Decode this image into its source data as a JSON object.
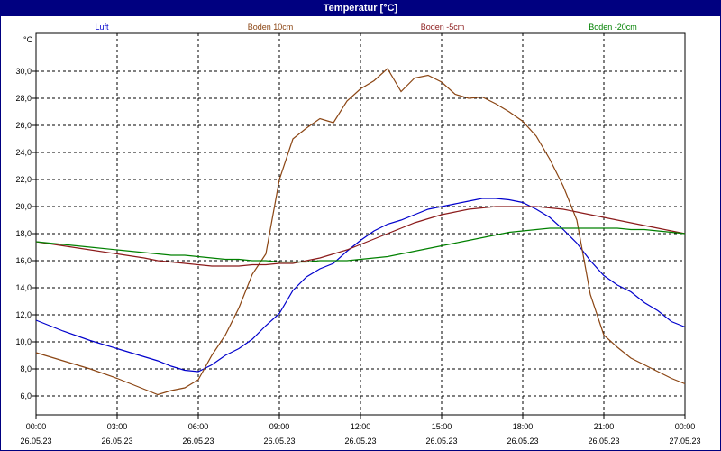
{
  "window": {
    "title": "Temperatur [°C]"
  },
  "colors": {
    "titlebar": "#000080",
    "grid": "#000000",
    "background": "#ffffff"
  },
  "chart_data": {
    "type": "line",
    "title": "Temperatur [°C]",
    "ylabel": "°C",
    "ylim": [
      4.6,
      32.8
    ],
    "xlim": [
      "26.05.23 00:00",
      "27.05.23 00:00"
    ],
    "grid": true,
    "legend_placement": "top",
    "y_ticks": [
      "6,0",
      "8,0",
      "10,0",
      "12,0",
      "14,0",
      "16,0",
      "18,0",
      "20,0",
      "22,0",
      "24,0",
      "26,0",
      "28,0",
      "30,0"
    ],
    "x_ticks": [
      {
        "time": "00:00",
        "date": "26.05.23"
      },
      {
        "time": "03:00",
        "date": "26.05.23"
      },
      {
        "time": "06:00",
        "date": "26.05.23"
      },
      {
        "time": "09:00",
        "date": "26.05.23"
      },
      {
        "time": "12:00",
        "date": "26.05.23"
      },
      {
        "time": "15:00",
        "date": "26.05.23"
      },
      {
        "time": "18:00",
        "date": "26.05.23"
      },
      {
        "time": "21:00",
        "date": "26.05.23"
      },
      {
        "time": "00:00",
        "date": "27.05.23"
      }
    ],
    "x_hours": [
      0,
      1,
      2,
      3,
      4,
      4.5,
      5,
      5.5,
      6,
      6.5,
      7,
      7.5,
      8,
      8.5,
      9,
      9.5,
      10,
      10.5,
      11,
      11.5,
      12,
      12.5,
      13,
      13.5,
      14,
      14.5,
      15,
      15.5,
      16,
      16.5,
      17,
      17.5,
      18,
      18.5,
      19,
      19.5,
      20,
      20.5,
      21,
      21.5,
      22,
      22.5,
      23,
      23.5,
      24
    ],
    "series": [
      {
        "name": "Luft",
        "color": "#0000cc",
        "values": [
          11.6,
          10.8,
          10.1,
          9.5,
          8.9,
          8.6,
          8.2,
          7.9,
          7.8,
          8.3,
          9.0,
          9.5,
          10.2,
          11.2,
          12.1,
          13.8,
          14.8,
          15.4,
          15.8,
          16.7,
          17.5,
          18.2,
          18.7,
          19.0,
          19.4,
          19.8,
          20.0,
          20.2,
          20.4,
          20.6,
          20.6,
          20.5,
          20.3,
          19.8,
          19.2,
          18.3,
          17.3,
          16.0,
          14.9,
          14.2,
          13.7,
          12.9,
          12.3,
          11.5,
          11.1
        ]
      },
      {
        "name": "Boden 10cm",
        "color": "#8b4513",
        "values": [
          9.2,
          8.6,
          8.0,
          7.3,
          6.5,
          6.1,
          6.4,
          6.6,
          7.2,
          9.0,
          10.5,
          12.5,
          15.0,
          16.5,
          22.0,
          25.0,
          25.8,
          26.5,
          26.2,
          27.8,
          28.7,
          29.3,
          30.2,
          28.5,
          29.5,
          29.7,
          29.2,
          28.3,
          28.0,
          28.1,
          27.6,
          27.0,
          26.3,
          25.2,
          23.5,
          21.5,
          19.0,
          13.5,
          10.5,
          9.6,
          8.8,
          8.3,
          7.8,
          7.3,
          6.9
        ]
      },
      {
        "name": "Boden -5cm",
        "color": "#8b1a1a",
        "values": [
          17.4,
          17.1,
          16.8,
          16.5,
          16.2,
          16.0,
          15.9,
          15.8,
          15.7,
          15.6,
          15.6,
          15.6,
          15.7,
          15.7,
          15.8,
          15.8,
          16.0,
          16.2,
          16.5,
          16.8,
          17.2,
          17.6,
          18.0,
          18.4,
          18.8,
          19.1,
          19.4,
          19.6,
          19.8,
          19.9,
          20.0,
          20.0,
          20.0,
          20.0,
          19.9,
          19.8,
          19.6,
          19.4,
          19.2,
          19.0,
          18.8,
          18.6,
          18.4,
          18.2,
          18.0
        ]
      },
      {
        "name": "Boden -20cm",
        "color": "#008000",
        "values": [
          17.4,
          17.2,
          17.0,
          16.8,
          16.6,
          16.5,
          16.4,
          16.4,
          16.3,
          16.2,
          16.1,
          16.1,
          16.0,
          16.0,
          15.9,
          15.9,
          15.9,
          16.0,
          16.0,
          16.0,
          16.1,
          16.2,
          16.3,
          16.5,
          16.7,
          16.9,
          17.1,
          17.3,
          17.5,
          17.7,
          17.9,
          18.1,
          18.2,
          18.3,
          18.4,
          18.4,
          18.4,
          18.4,
          18.4,
          18.4,
          18.3,
          18.3,
          18.2,
          18.1,
          18.0
        ]
      }
    ]
  }
}
